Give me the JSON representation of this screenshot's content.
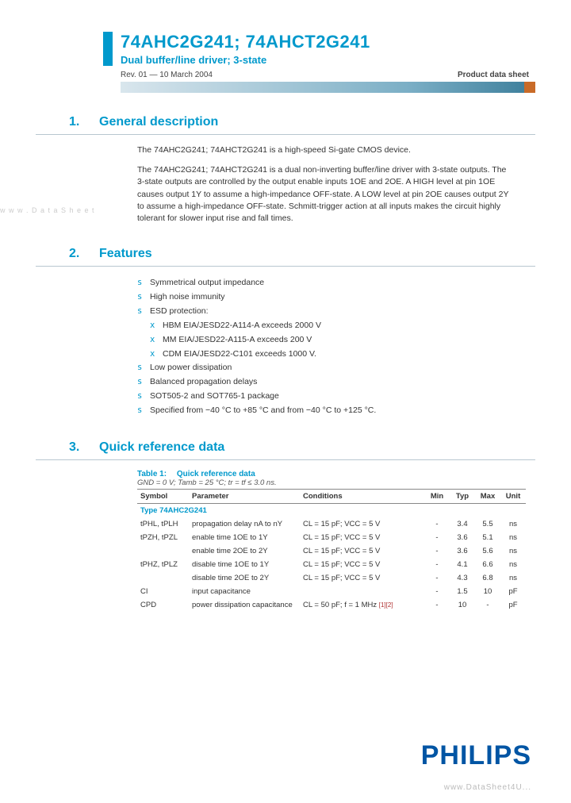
{
  "header": {
    "title": "74AHC2G241; 74AHCT2G241",
    "subtitle": "Dual buffer/line driver; 3-state",
    "revision": "Rev. 01 — 10 March 2004",
    "doc_type": "Product data sheet"
  },
  "watermarks": {
    "left": "w w w . D a t a S h e e t",
    "footer": "www.DataSheet4U..."
  },
  "sections": {
    "s1": {
      "num": "1.",
      "title": "General description"
    },
    "s2": {
      "num": "2.",
      "title": "Features"
    },
    "s3": {
      "num": "3.",
      "title": "Quick reference data"
    }
  },
  "general": {
    "p1": "The 74AHC2G241; 74AHCT2G241 is a high-speed Si-gate CMOS device.",
    "p2": "The 74AHC2G241; 74AHCT2G241 is a dual non-inverting buffer/line driver with 3-state outputs. The 3-state outputs are controlled by the output enable inputs 1OE and 2OE. A HIGH level at pin 1OE causes output 1Y to assume a high-impedance OFF-state. A LOW level at pin 2OE causes output 2Y to assume a high-impedance OFF-state. Schmitt-trigger action at all inputs makes the circuit highly tolerant for slower input rise and fall times."
  },
  "features": {
    "items": [
      "Symmetrical output impedance",
      "High noise immunity",
      "ESD protection:",
      "Low power dissipation",
      "Balanced propagation delays",
      "SOT505-2 and SOT765-1 package",
      "Specified from −40 °C to +85 °C and from −40 °C to +125 °C."
    ],
    "esd_sub": [
      "HBM EIA/JESD22-A114-A exceeds 2000 V",
      "MM EIA/JESD22-A115-A exceeds 200 V",
      "CDM EIA/JESD22-C101 exceeds 1000 V."
    ]
  },
  "table": {
    "caption_label": "Table 1:",
    "caption_title": "Quick reference data",
    "conditions_note": "GND = 0 V; Tamb = 25 °C; tr = tf ≤ 3.0 ns.",
    "type_label": "Type 74AHC2G241",
    "columns": [
      "Symbol",
      "Parameter",
      "Conditions",
      "Min",
      "Typ",
      "Max",
      "Unit"
    ],
    "rows": [
      {
        "sym": "tPHL, tPLH",
        "param": "propagation delay nA to nY",
        "cond": "CL = 15 pF; VCC = 5 V",
        "min": "-",
        "typ": "3.4",
        "max": "5.5",
        "unit": "ns"
      },
      {
        "sym": "tPZH, tPZL",
        "param": "enable time 1OE to 1Y",
        "cond": "CL = 15 pF; VCC = 5 V",
        "min": "-",
        "typ": "3.6",
        "max": "5.1",
        "unit": "ns"
      },
      {
        "sym": "",
        "param": "enable time 2OE to 2Y",
        "cond": "CL = 15 pF; VCC = 5 V",
        "min": "-",
        "typ": "3.6",
        "max": "5.6",
        "unit": "ns"
      },
      {
        "sym": "tPHZ, tPLZ",
        "param": "disable time 1OE to 1Y",
        "cond": "CL = 15 pF; VCC = 5 V",
        "min": "-",
        "typ": "4.1",
        "max": "6.6",
        "unit": "ns"
      },
      {
        "sym": "",
        "param": "disable time 2OE to 2Y",
        "cond": "CL = 15 pF; VCC = 5 V",
        "min": "-",
        "typ": "4.3",
        "max": "6.8",
        "unit": "ns"
      },
      {
        "sym": "CI",
        "param": "input capacitance",
        "cond": "",
        "min": "-",
        "typ": "1.5",
        "max": "10",
        "unit": "pF"
      },
      {
        "sym": "CPD",
        "param": "power dissipation capacitance",
        "cond": "CL = 50 pF; f = 1 MHz",
        "min": "-",
        "typ": "10",
        "max": "-",
        "unit": "pF",
        "note": "[1][2]"
      }
    ]
  },
  "logo": "PHILIPS",
  "colors": {
    "brand_blue": "#0099cc",
    "logo_blue": "#0055a4",
    "accent_orange": "#c96b28",
    "rule_grey": "#b8c7d0",
    "text": "#333333"
  }
}
